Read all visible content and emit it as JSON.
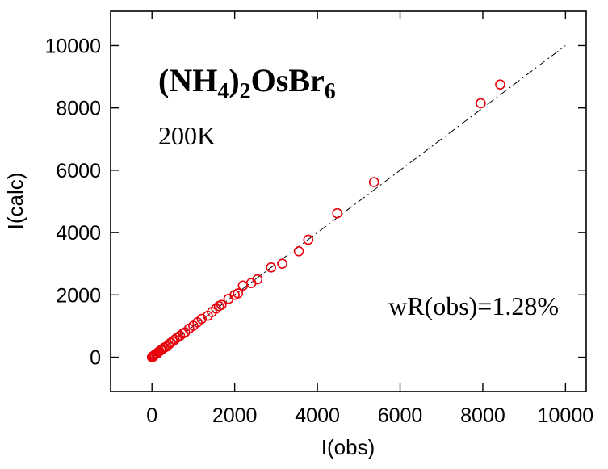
{
  "chart_data": {
    "type": "scatter",
    "title": {
      "formula_parts": [
        {
          "text": "(NH",
          "sub": false
        },
        {
          "text": "4",
          "sub": true
        },
        {
          "text": ")",
          "sub": false
        },
        {
          "text": "2",
          "sub": true
        },
        {
          "text": "OsBr",
          "sub": false
        },
        {
          "text": "6",
          "sub": true
        }
      ],
      "temperature": "200K"
    },
    "annotation": "wR(obs)=1.28%",
    "xlabel": "I(obs)",
    "ylabel": "I(calc)",
    "xlim": [
      -1000,
      10500
    ],
    "ylim": [
      -1100,
      11100
    ],
    "xticks": [
      0,
      2000,
      4000,
      6000,
      8000,
      10000
    ],
    "yticks": [
      0,
      2000,
      4000,
      6000,
      8000,
      10000
    ],
    "xtick_labels": [
      "0",
      "2000",
      "4000",
      "6000",
      "8000",
      "10000"
    ],
    "ytick_labels": [
      "0",
      "2000",
      "4000",
      "6000",
      "8000",
      "10000"
    ],
    "grid": false,
    "marker_color": "#e8000b",
    "reference_line": {
      "style": "dash-dot",
      "color": "#000000",
      "from": [
        0,
        0
      ],
      "to": [
        10000,
        10000
      ]
    },
    "points": [
      {
        "x": 0,
        "y": 0
      },
      {
        "x": 10,
        "y": 20
      },
      {
        "x": 20,
        "y": 10
      },
      {
        "x": 30,
        "y": 40
      },
      {
        "x": 50,
        "y": 50
      },
      {
        "x": 70,
        "y": 80
      },
      {
        "x": 100,
        "y": 110
      },
      {
        "x": 130,
        "y": 120
      },
      {
        "x": 150,
        "y": 160
      },
      {
        "x": 180,
        "y": 190
      },
      {
        "x": 220,
        "y": 230
      },
      {
        "x": 260,
        "y": 270
      },
      {
        "x": 300,
        "y": 310
      },
      {
        "x": 350,
        "y": 340
      },
      {
        "x": 400,
        "y": 400
      },
      {
        "x": 450,
        "y": 460
      },
      {
        "x": 500,
        "y": 510
      },
      {
        "x": 550,
        "y": 560
      },
      {
        "x": 600,
        "y": 620
      },
      {
        "x": 680,
        "y": 690
      },
      {
        "x": 750,
        "y": 760
      },
      {
        "x": 800,
        "y": 800
      },
      {
        "x": 900,
        "y": 920
      },
      {
        "x": 1000,
        "y": 1010
      },
      {
        "x": 1100,
        "y": 1120
      },
      {
        "x": 1200,
        "y": 1230
      },
      {
        "x": 1350,
        "y": 1330
      },
      {
        "x": 1450,
        "y": 1450
      },
      {
        "x": 1550,
        "y": 1560
      },
      {
        "x": 1620,
        "y": 1640
      },
      {
        "x": 1680,
        "y": 1680
      },
      {
        "x": 1850,
        "y": 1870
      },
      {
        "x": 2000,
        "y": 2000
      },
      {
        "x": 2080,
        "y": 2050
      },
      {
        "x": 2200,
        "y": 2300
      },
      {
        "x": 2400,
        "y": 2380
      },
      {
        "x": 2550,
        "y": 2500
      },
      {
        "x": 2880,
        "y": 2880
      },
      {
        "x": 3150,
        "y": 3000
      },
      {
        "x": 3550,
        "y": 3400
      },
      {
        "x": 3780,
        "y": 3770
      },
      {
        "x": 4480,
        "y": 4620
      },
      {
        "x": 5370,
        "y": 5620
      },
      {
        "x": 7950,
        "y": 8150
      },
      {
        "x": 8420,
        "y": 8750
      }
    ]
  }
}
